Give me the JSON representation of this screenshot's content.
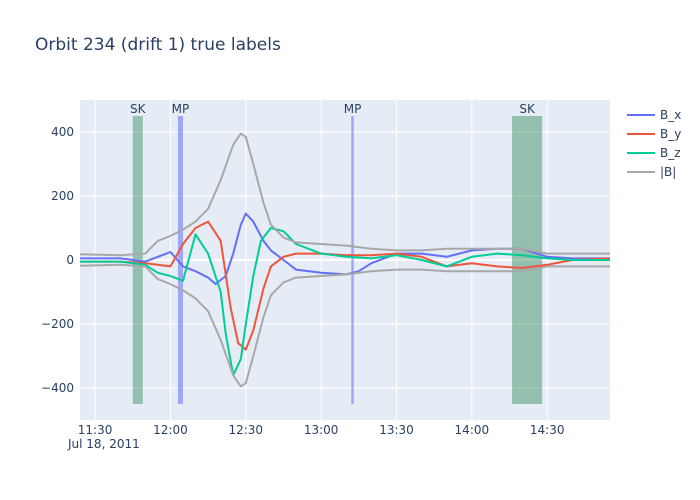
{
  "chart_data": {
    "type": "line",
    "title": "Orbit 234 (drift 1) true labels",
    "xlabel": "",
    "ylabel": "",
    "x_range": [
      "11:24",
      "14:55"
    ],
    "ylim": [
      -500,
      500
    ],
    "x_ticks": [
      "11:30",
      "12:00",
      "12:30",
      "13:00",
      "13:30",
      "14:00",
      "14:30"
    ],
    "x_date_label": "Jul 18, 2011",
    "y_ticks": [
      400,
      200,
      0,
      -200,
      -400
    ],
    "y_tick_labels": [
      "400",
      "200",
      "0",
      "−200",
      "−400"
    ],
    "grid": true,
    "legend_position": "top-right",
    "series": [
      {
        "name": "B_x",
        "color": "#636efa",
        "x": [
          "11:24",
          "11:40",
          "11:50",
          "11:55",
          "12:00",
          "12:05",
          "12:10",
          "12:15",
          "12:18",
          "12:22",
          "12:25",
          "12:28",
          "12:30",
          "12:33",
          "12:37",
          "12:40",
          "12:45",
          "12:50",
          "13:00",
          "13:10",
          "13:15",
          "13:20",
          "13:30",
          "13:40",
          "13:50",
          "14:00",
          "14:10",
          "14:20",
          "14:30",
          "14:40",
          "14:55"
        ],
        "y": [
          5,
          5,
          -5,
          10,
          25,
          -20,
          -35,
          -55,
          -75,
          -50,
          20,
          110,
          145,
          120,
          60,
          30,
          0,
          -30,
          -40,
          -45,
          -35,
          -10,
          20,
          20,
          10,
          30,
          35,
          35,
          10,
          5,
          5
        ]
      },
      {
        "name": "B_y",
        "color": "#ef553b",
        "x": [
          "11:24",
          "11:40",
          "11:50",
          "11:55",
          "12:00",
          "12:05",
          "12:10",
          "12:15",
          "12:20",
          "12:24",
          "12:27",
          "12:30",
          "12:33",
          "12:37",
          "12:40",
          "12:45",
          "12:50",
          "13:00",
          "13:10",
          "13:20",
          "13:30",
          "13:40",
          "13:50",
          "14:00",
          "14:10",
          "14:20",
          "14:30",
          "14:40",
          "14:55"
        ],
        "y": [
          -5,
          -5,
          -10,
          -15,
          -20,
          50,
          100,
          120,
          60,
          -150,
          -260,
          -280,
          -220,
          -90,
          -20,
          10,
          20,
          20,
          15,
          15,
          20,
          10,
          -20,
          -10,
          -20,
          -25,
          -15,
          0,
          5
        ]
      },
      {
        "name": "B_z",
        "color": "#00cc96",
        "x": [
          "11:24",
          "11:40",
          "11:50",
          "11:55",
          "12:00",
          "12:05",
          "12:10",
          "12:15",
          "12:20",
          "12:22",
          "12:25",
          "12:28",
          "12:30",
          "12:33",
          "12:36",
          "12:40",
          "12:45",
          "12:50",
          "13:00",
          "13:10",
          "13:20",
          "13:30",
          "13:40",
          "13:50",
          "14:00",
          "14:10",
          "14:20",
          "14:30",
          "14:40",
          "14:55"
        ],
        "y": [
          -5,
          -5,
          -15,
          -40,
          -50,
          -65,
          80,
          20,
          -100,
          -230,
          -360,
          -310,
          -200,
          -50,
          60,
          100,
          90,
          50,
          20,
          10,
          5,
          15,
          0,
          -20,
          10,
          20,
          15,
          5,
          0,
          0
        ]
      },
      {
        "name": "|B|",
        "color": "#a8a8a8",
        "x": [
          "11:24",
          "11:40",
          "11:50",
          "11:55",
          "12:00",
          "12:05",
          "12:10",
          "12:15",
          "12:20",
          "12:25",
          "12:28",
          "12:30",
          "12:33",
          "12:37",
          "12:40",
          "12:45",
          "12:50",
          "13:00",
          "13:10",
          "13:20",
          "13:30",
          "13:40",
          "13:50",
          "14:00",
          "14:10",
          "14:20",
          "14:30",
          "14:40",
          "14:55"
        ],
        "y": [
          18,
          15,
          20,
          60,
          75,
          95,
          120,
          160,
          250,
          360,
          395,
          385,
          300,
          180,
          110,
          70,
          55,
          50,
          45,
          35,
          30,
          30,
          35,
          35,
          35,
          35,
          20,
          20,
          20
        ],
        "mirrored": true
      }
    ],
    "regions": [
      {
        "label": "SK",
        "start": "11:45",
        "end": "11:49",
        "color": "#2e8b57"
      },
      {
        "label": "MP",
        "start": "12:03",
        "end": "12:05",
        "color": "#636efa"
      },
      {
        "label": "MP",
        "start": "13:12",
        "end": "13:13",
        "color": "#636efa"
      },
      {
        "label": "SK",
        "start": "14:16",
        "end": "14:28",
        "color": "#2e8b57"
      }
    ],
    "plot_bg": "#e5ecf6"
  }
}
